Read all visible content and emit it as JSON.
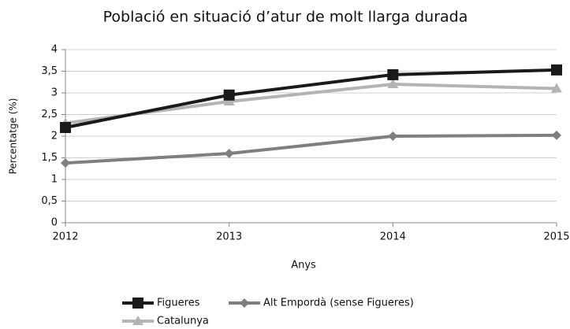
{
  "chart_data": {
    "type": "line",
    "title": "Població en situació d’atur de molt llarga durada",
    "x_label": "Anys",
    "y_label": "Percentatge (%)",
    "x": [
      2012,
      2013,
      2014,
      2015
    ],
    "xlim": [
      2012,
      2015
    ],
    "xticks": [
      2012,
      2013,
      2014,
      2015
    ],
    "ylim": [
      0,
      4
    ],
    "yticks": [
      0,
      {
        "value": 0.5,
        "label": "0,5"
      },
      1,
      {
        "value": 1.5,
        "label": "1,5"
      },
      2,
      {
        "value": 2.5,
        "label": "2,5"
      },
      3,
      {
        "value": 3.5,
        "label": "3,5"
      },
      4
    ],
    "grid": true,
    "legend": "bottom",
    "series": [
      {
        "name": "Figueres",
        "color": "#1a1a1a",
        "marker": "square",
        "values": [
          2.2,
          2.95,
          3.42,
          3.53
        ]
      },
      {
        "name": "Alt Empordà (sense Figueres)",
        "color": "#7f7f7f",
        "marker": "diamond",
        "values": [
          1.38,
          1.6,
          2.0,
          2.02
        ]
      },
      {
        "name": "Catalunya",
        "color": "#b4b4b4",
        "marker": "triangle",
        "values": [
          2.3,
          2.8,
          3.2,
          3.1
        ]
      }
    ]
  }
}
